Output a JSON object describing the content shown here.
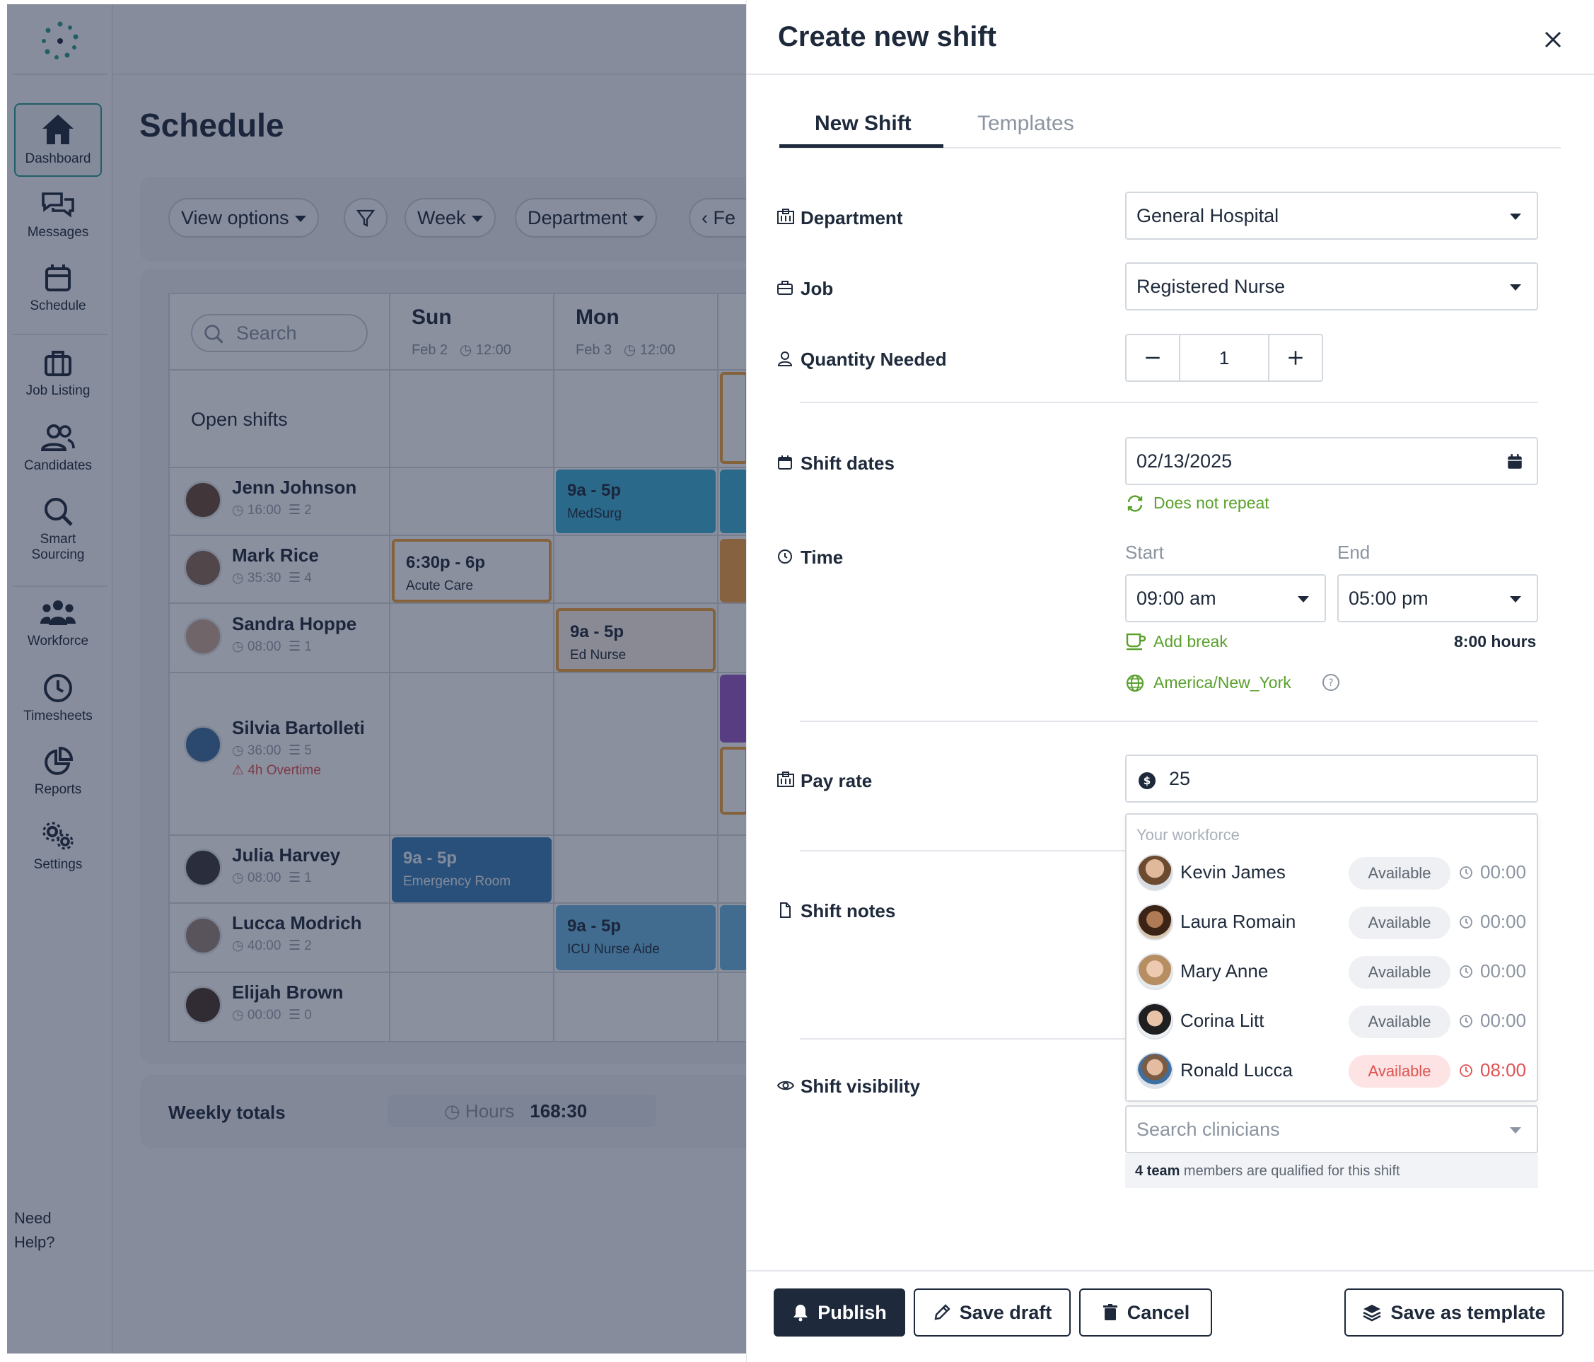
{
  "sidebar": {
    "items": [
      {
        "label": "Dashboard",
        "icon": "home-icon",
        "active": true
      },
      {
        "label": "Messages",
        "icon": "messages-icon"
      },
      {
        "label": "Schedule",
        "icon": "calendar-icon"
      },
      {
        "label": "Job Listing",
        "icon": "briefcase-icon"
      },
      {
        "label": "Candidates",
        "icon": "users-icon"
      },
      {
        "label": "Smart Sourcing",
        "icon": "search-icon"
      },
      {
        "label": "Workforce",
        "icon": "team-icon"
      },
      {
        "label": "Timesheets",
        "icon": "clock-icon"
      },
      {
        "label": "Reports",
        "icon": "pie-chart-icon"
      },
      {
        "label": "Settings",
        "icon": "gears-icon"
      }
    ],
    "help_line1": "Need",
    "help_line2": "Help?"
  },
  "schedule": {
    "title": "Schedule",
    "toolbar": {
      "view_options": "View options",
      "week": "Week",
      "department": "Department",
      "nav_partial": "Fe"
    },
    "search_placeholder": "Search",
    "days": [
      {
        "name": "Sun",
        "date": "Feb 2",
        "hours": "12:00"
      },
      {
        "name": "Mon",
        "date": "Feb 3",
        "hours": "12:00"
      }
    ],
    "open_shifts_label": "Open shifts",
    "employees": [
      {
        "name": "Jenn Johnson",
        "hours": "16:00",
        "shifts": "2"
      },
      {
        "name": "Mark Rice",
        "hours": "35:30",
        "shifts": "4"
      },
      {
        "name": "Sandra Hoppe",
        "hours": "08:00",
        "shifts": "1"
      },
      {
        "name": "Silvia Bartolleti",
        "hours": "36:00",
        "shifts": "5",
        "overtime": "4h Overtime"
      },
      {
        "name": "Julia Harvey",
        "hours": "08:00",
        "shifts": "1"
      },
      {
        "name": "Lucca Modrich",
        "hours": "40:00",
        "shifts": "2"
      },
      {
        "name": "Elijah Brown",
        "hours": "00:00",
        "shifts": "0"
      }
    ],
    "shifts": [
      {
        "time": "9a - 5p",
        "dept": "MedSurg"
      },
      {
        "time": "6:30p - 6p",
        "dept": "Acute Care"
      },
      {
        "time": "9a - 5p",
        "dept": "Ed Nurse"
      },
      {
        "time": "9a - 5p",
        "dept": "Emergency Room"
      },
      {
        "time": "9a - 5p",
        "dept": "ICU Nurse Aide"
      }
    ],
    "weekly_totals_label": "Weekly totals",
    "hours_label": "Hours",
    "hours_value": "168:30"
  },
  "drawer": {
    "title": "Create new shift",
    "tabs": [
      {
        "label": "New Shift",
        "active": true
      },
      {
        "label": "Templates",
        "active": false
      }
    ],
    "department": {
      "label": "Department",
      "value": "General Hospital"
    },
    "job": {
      "label": "Job",
      "value": "Registered Nurse"
    },
    "quantity": {
      "label": "Quantity Needed",
      "value": "1"
    },
    "shift_dates": {
      "label": "Shift dates",
      "value": "02/13/2025",
      "repeat": "Does not repeat"
    },
    "time": {
      "label": "Time",
      "start_label": "Start",
      "start_value": "09:00 am",
      "end_label": "End",
      "end_value": "05:00 pm",
      "add_break": "Add break",
      "total": "8:00 hours",
      "timezone": "America/New_York"
    },
    "pay_rate": {
      "label": "Pay rate",
      "value": "25"
    },
    "shift_notes": {
      "label": "Shift notes"
    },
    "shift_visibility": {
      "label": "Shift visibility"
    },
    "workforce": {
      "heading": "Your workforce",
      "members": [
        {
          "name": "Kevin James",
          "status": "Available",
          "hours": "00:00",
          "warn": false
        },
        {
          "name": "Laura Romain",
          "status": "Available",
          "hours": "00:00",
          "warn": false
        },
        {
          "name": "Mary Anne",
          "status": "Available",
          "hours": "00:00",
          "warn": false
        },
        {
          "name": "Corina Litt",
          "status": "Available",
          "hours": "00:00",
          "warn": false
        },
        {
          "name": "Ronald Lucca",
          "status": "Available",
          "hours": "08:00",
          "warn": true
        }
      ]
    },
    "search_clinicians_placeholder": "Search clinicians",
    "qualified_bold": "4 team",
    "qualified_rest": " members are qualified for this shift",
    "buttons": {
      "publish": "Publish",
      "save_draft": "Save draft",
      "cancel": "Cancel",
      "save_template": "Save as template"
    }
  },
  "colors": {
    "brand_dark": "#1e2a3b",
    "accent_green": "#5aa02c",
    "warn_red": "#e05252",
    "teal": "#2a9d8f"
  }
}
